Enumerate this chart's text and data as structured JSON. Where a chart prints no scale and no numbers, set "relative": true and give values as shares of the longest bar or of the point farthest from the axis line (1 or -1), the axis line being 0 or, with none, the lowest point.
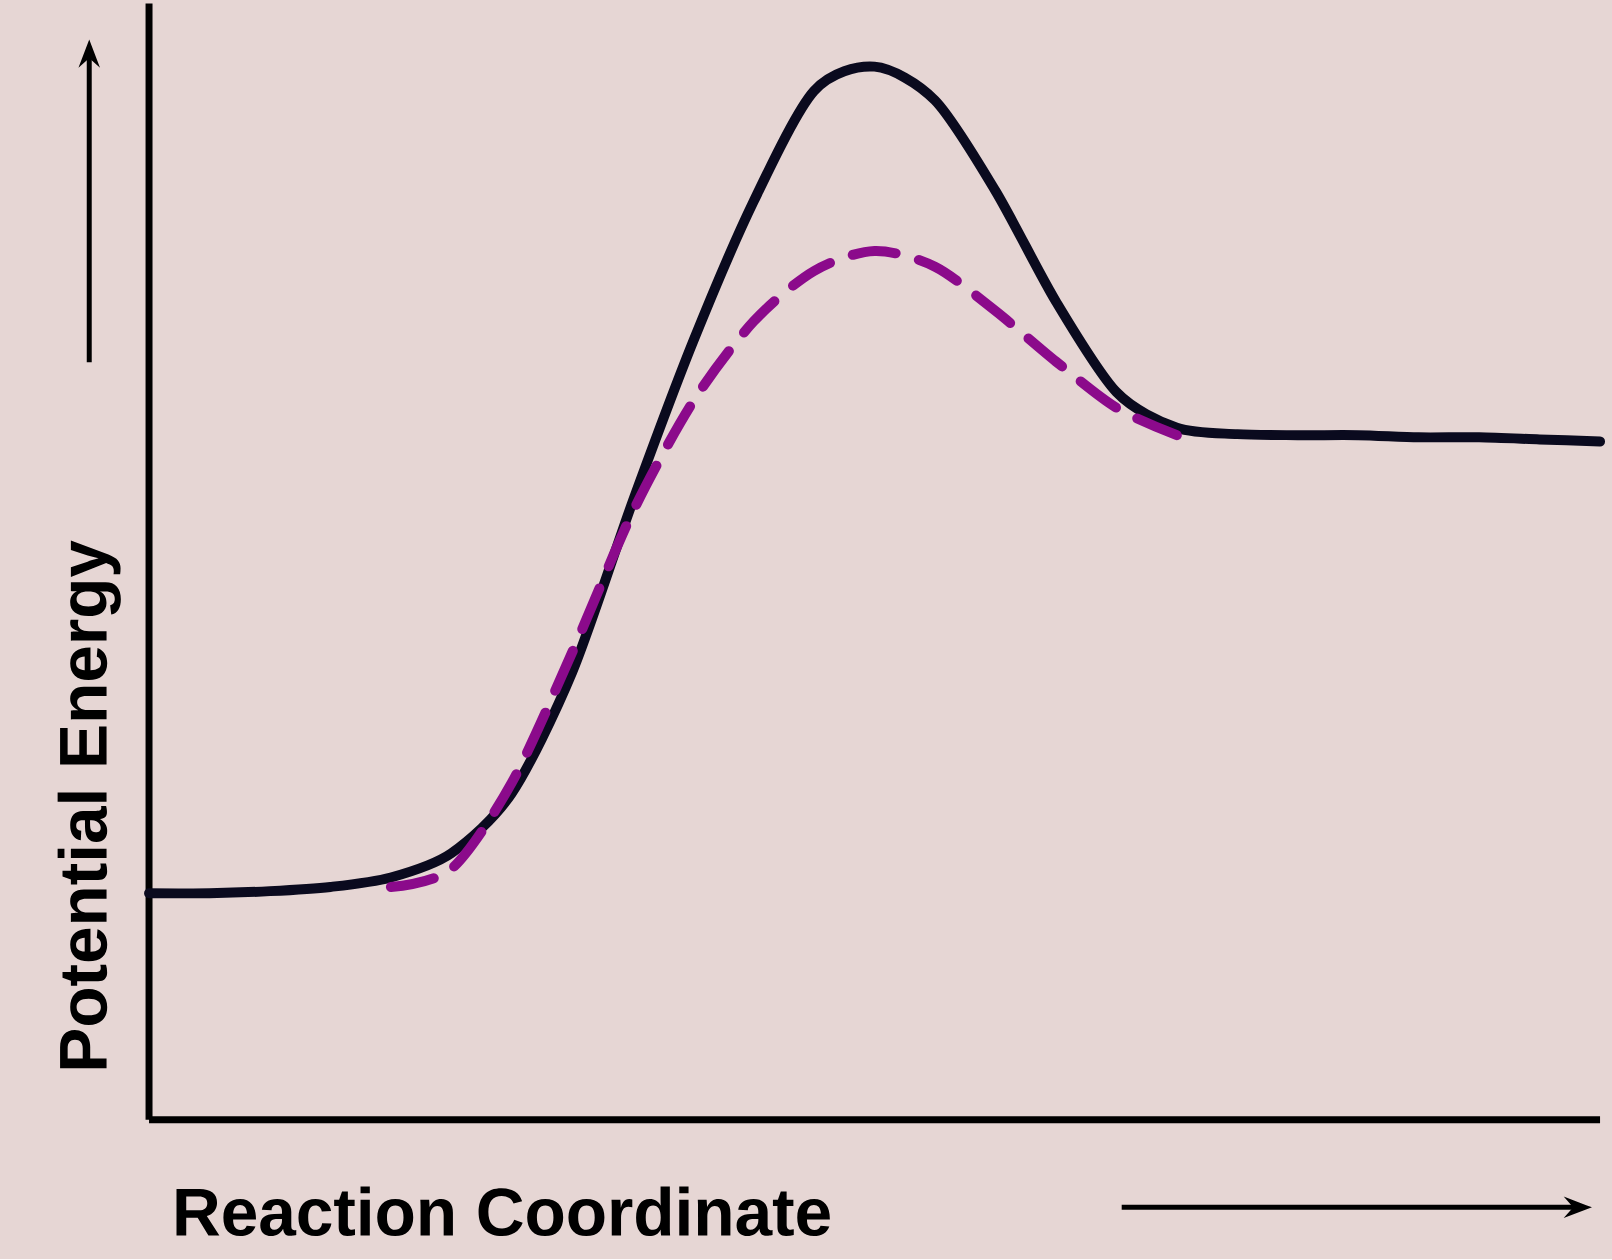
{
  "chart_data": {
    "type": "line",
    "relative": true,
    "xlabel": "Reaction Coordinate",
    "ylabel": "Potential Energy",
    "categories": [
      null,
      null,
      null,
      null,
      null,
      null,
      null,
      null,
      null,
      null,
      null,
      null,
      null,
      null,
      null,
      null,
      null,
      null,
      null,
      null,
      null,
      null,
      null,
      null,
      null
    ],
    "series": [
      {
        "color": "#0a0a1e",
        "line_style": "solid",
        "values": [
          0.215,
          0.215,
          0.217,
          0.221,
          0.23,
          0.253,
          0.31,
          0.425,
          0.587,
          0.739,
          0.872,
          0.977,
          1.0,
          0.968,
          0.882,
          0.777,
          0.691,
          0.657,
          0.651,
          0.65,
          0.65,
          0.648,
          0.648,
          0.646,
          0.644
        ]
      },
      {
        "color": "#8b0a8b",
        "line_style": "dashed",
        "values": [
          null,
          null,
          null,
          null,
          0.221,
          0.238,
          0.32,
          0.444,
          0.577,
          0.682,
          0.758,
          0.806,
          0.825,
          0.81,
          0.768,
          0.72,
          0.676,
          0.65,
          null,
          null,
          null,
          null,
          null,
          null,
          null
        ]
      }
    ],
    "marker": "none"
  }
}
